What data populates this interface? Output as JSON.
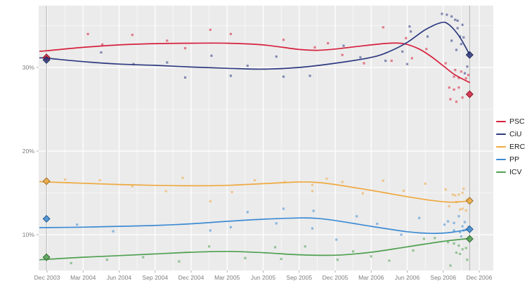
{
  "chart_data": {
    "type": "line",
    "title": "",
    "xlabel": "",
    "ylabel": "",
    "x_axis": {
      "tick_labels": [
        "Dec 2003",
        "Mar 2004",
        "Jun 2004",
        "Sep 2004",
        "Dec 2004",
        "Mar 2005",
        "Jun 2005",
        "Sep 2005",
        "Dec 2005",
        "Mar 2006",
        "Jun 2006",
        "Sep 2006",
        "Dec 2006"
      ],
      "tick_months": [
        0,
        3,
        6,
        9,
        12,
        15,
        18,
        21,
        24,
        27,
        30,
        33,
        36
      ],
      "minor_tick_months": [
        1.5,
        4.5,
        7.5,
        10.5,
        13.5,
        16.5,
        19.5,
        22.5,
        25.5,
        28.5,
        31.5,
        34.5
      ],
      "range_months": [
        -0.7,
        37.2
      ]
    },
    "y_axis": {
      "tick_labels": [
        "10%",
        "20%",
        "30%"
      ],
      "tick_values": [
        10,
        20,
        30
      ],
      "minor_tick_values": [
        15,
        25,
        35
      ],
      "range": [
        5.7,
        37.4
      ]
    },
    "election_lines_months": [
      -0.05,
      35.2
    ],
    "legend_position": "right",
    "colors": {
      "panel_bg": "#EBEBEB",
      "grid": "#FFFFFF",
      "election_line": "#ACACAC",
      "axis_text": "#7E7E7E",
      "tick_mark": "#9A9A9A"
    },
    "series": [
      {
        "name": "PSC",
        "color": "#D6203C",
        "smooth": [
          [
            -0.6,
            31.95
          ],
          [
            0,
            32.0
          ],
          [
            3,
            32.4
          ],
          [
            6,
            32.7
          ],
          [
            9,
            32.85
          ],
          [
            12,
            32.9
          ],
          [
            15,
            32.9
          ],
          [
            18,
            32.7
          ],
          [
            21,
            32.15
          ],
          [
            22.5,
            32.05
          ],
          [
            24,
            32.2
          ],
          [
            25.5,
            32.45
          ],
          [
            27,
            32.7
          ],
          [
            28.5,
            32.9
          ],
          [
            29.7,
            32.85
          ],
          [
            31,
            32.2
          ],
          [
            32,
            31.3
          ],
          [
            33,
            30.2
          ],
          [
            34,
            29.1
          ],
          [
            35.2,
            28.2
          ]
        ],
        "polls": [
          [
            3.4,
            34.0
          ],
          [
            4.6,
            32.75
          ],
          [
            7.1,
            33.9
          ],
          [
            10.0,
            33.2
          ],
          [
            11.5,
            32.3
          ],
          [
            13.6,
            34.5
          ],
          [
            15.3,
            34.0
          ],
          [
            19.7,
            33.3
          ],
          [
            22.3,
            32.4
          ],
          [
            23.4,
            32.9
          ],
          [
            24.6,
            31.5
          ],
          [
            26.4,
            30.5
          ],
          [
            28.0,
            34.8
          ],
          [
            28.7,
            30.8
          ],
          [
            29.9,
            33.5
          ],
          [
            30.4,
            31.1
          ],
          [
            31.6,
            32.2
          ],
          [
            33.2,
            30.5
          ],
          [
            34.0,
            29.7
          ],
          [
            34.5,
            29.5
          ],
          [
            33.9,
            28.9
          ],
          [
            34.3,
            28.75
          ],
          [
            33.5,
            27.6
          ],
          [
            33.9,
            27.35
          ],
          [
            34.3,
            27.6
          ],
          [
            34.9,
            28.7
          ],
          [
            34.6,
            26.4
          ],
          [
            33.6,
            26.2
          ],
          [
            34.1,
            25.9
          ],
          [
            35.1,
            29.1
          ]
        ],
        "elections": [
          [
            -0.05,
            31.2
          ],
          [
            35.2,
            26.8
          ]
        ]
      },
      {
        "name": "CiU",
        "color": "#2E3A80",
        "smooth": [
          [
            -0.6,
            31.15
          ],
          [
            0,
            31.1
          ],
          [
            3,
            30.7
          ],
          [
            6,
            30.4
          ],
          [
            9,
            30.25
          ],
          [
            12,
            30.05
          ],
          [
            15,
            29.9
          ],
          [
            18,
            29.8
          ],
          [
            21,
            30.0
          ],
          [
            24,
            30.5
          ],
          [
            27,
            31.2
          ],
          [
            28.5,
            31.9
          ],
          [
            30,
            33.0
          ],
          [
            31.5,
            34.5
          ],
          [
            32.8,
            35.35
          ],
          [
            33.4,
            35.2
          ],
          [
            34.2,
            34.0
          ],
          [
            34.8,
            32.6
          ],
          [
            35.2,
            31.5
          ]
        ],
        "polls": [
          [
            4.5,
            31.8
          ],
          [
            7.2,
            30.4
          ],
          [
            10.0,
            30.6
          ],
          [
            11.5,
            28.8
          ],
          [
            13.7,
            31.4
          ],
          [
            15.3,
            29.0
          ],
          [
            16.7,
            30.2
          ],
          [
            19.1,
            31.3
          ],
          [
            19.7,
            28.9
          ],
          [
            21.9,
            29.0
          ],
          [
            24.7,
            32.6
          ],
          [
            26.1,
            31.2
          ],
          [
            28.2,
            30.8
          ],
          [
            29.6,
            31.9
          ],
          [
            30.0,
            30.4
          ],
          [
            30.2,
            34.9
          ],
          [
            30.3,
            34.3
          ],
          [
            31.7,
            33.7
          ],
          [
            32.9,
            36.4
          ],
          [
            33.3,
            36.3
          ],
          [
            33.7,
            36.1
          ],
          [
            34.0,
            35.7
          ],
          [
            34.2,
            35.6
          ],
          [
            34.6,
            35.1
          ],
          [
            34.2,
            34.7
          ],
          [
            34.4,
            33.7
          ],
          [
            34.7,
            33.6
          ],
          [
            33.7,
            33.2
          ],
          [
            34.5,
            32.8
          ],
          [
            34.1,
            32.1
          ],
          [
            35.0,
            30.1
          ],
          [
            34.8,
            29.3
          ]
        ],
        "elections": [
          [
            -0.05,
            30.9
          ],
          [
            35.2,
            31.5
          ]
        ]
      },
      {
        "name": "ERC",
        "color": "#EFA940",
        "smooth": [
          [
            -0.6,
            16.35
          ],
          [
            0,
            16.3
          ],
          [
            3,
            16.15
          ],
          [
            6,
            16.0
          ],
          [
            9,
            15.9
          ],
          [
            12,
            15.85
          ],
          [
            15,
            15.9
          ],
          [
            18,
            16.1
          ],
          [
            21,
            16.3
          ],
          [
            22.5,
            16.25
          ],
          [
            24,
            16.0
          ],
          [
            27,
            15.3
          ],
          [
            30,
            14.55
          ],
          [
            32,
            14.1
          ],
          [
            33.5,
            13.9
          ],
          [
            34.5,
            13.95
          ],
          [
            35.2,
            14.05
          ]
        ],
        "polls": [
          [
            1.5,
            16.6
          ],
          [
            4.4,
            16.5
          ],
          [
            7.1,
            15.8
          ],
          [
            9.9,
            15.2
          ],
          [
            11.3,
            16.8
          ],
          [
            13.6,
            14.0
          ],
          [
            15.4,
            15.1
          ],
          [
            17.3,
            16.5
          ],
          [
            19.8,
            16.3
          ],
          [
            22.1,
            15.95
          ],
          [
            22.1,
            15.2
          ],
          [
            23.3,
            16.7
          ],
          [
            24.6,
            16.3
          ],
          [
            26.3,
            14.95
          ],
          [
            28.0,
            16.45
          ],
          [
            29.7,
            15.25
          ],
          [
            31.5,
            16.1
          ],
          [
            33.2,
            15.4
          ],
          [
            33.5,
            13.4
          ],
          [
            33.8,
            14.8
          ],
          [
            34.1,
            13.9
          ],
          [
            34.0,
            14.7
          ],
          [
            34.3,
            14.8
          ],
          [
            34.4,
            13.0
          ],
          [
            34.6,
            15.0
          ],
          [
            34.6,
            13.1
          ],
          [
            34.7,
            15.5
          ],
          [
            35.0,
            14.2
          ],
          [
            34.9,
            12.9
          ]
        ],
        "elections": [
          [
            -0.05,
            16.4
          ],
          [
            35.2,
            14.05
          ]
        ]
      },
      {
        "name": "PP",
        "color": "#3D8BD4",
        "smooth": [
          [
            -0.6,
            10.85
          ],
          [
            0,
            10.85
          ],
          [
            3,
            10.9
          ],
          [
            6,
            11.0
          ],
          [
            9,
            11.1
          ],
          [
            12,
            11.3
          ],
          [
            15,
            11.6
          ],
          [
            18,
            11.85
          ],
          [
            21,
            12.0
          ],
          [
            22.5,
            11.95
          ],
          [
            24,
            11.7
          ],
          [
            27,
            11.0
          ],
          [
            30,
            10.35
          ],
          [
            32,
            10.15
          ],
          [
            33.5,
            10.25
          ],
          [
            35.2,
            10.65
          ]
        ],
        "polls": [
          [
            2.5,
            11.2
          ],
          [
            5.5,
            10.4
          ],
          [
            13.6,
            10.5
          ],
          [
            15.3,
            10.9
          ],
          [
            16.7,
            12.7
          ],
          [
            19.1,
            11.35
          ],
          [
            19.7,
            13.1
          ],
          [
            22.2,
            12.85
          ],
          [
            22.1,
            10.75
          ],
          [
            24.1,
            9.4
          ],
          [
            25.8,
            12.2
          ],
          [
            27.5,
            11.3
          ],
          [
            29.5,
            10.0
          ],
          [
            31.0,
            12.0
          ],
          [
            33.1,
            11.2
          ],
          [
            33.4,
            11.6
          ],
          [
            33.9,
            11.4
          ],
          [
            34.3,
            12.2
          ],
          [
            33.9,
            10.5
          ],
          [
            34.4,
            10.3
          ],
          [
            34.7,
            10.5
          ],
          [
            34.9,
            10.6
          ],
          [
            34.5,
            9.8
          ],
          [
            34.6,
            11.0
          ],
          [
            35.1,
            10.9
          ],
          [
            34.8,
            11.5
          ]
        ],
        "elections": [
          [
            -0.05,
            11.9
          ],
          [
            35.2,
            10.65
          ]
        ]
      },
      {
        "name": "ICV",
        "color": "#4FA050",
        "smooth": [
          [
            -0.6,
            7.0
          ],
          [
            0,
            7.05
          ],
          [
            3,
            7.3
          ],
          [
            6,
            7.5
          ],
          [
            9,
            7.7
          ],
          [
            12,
            7.9
          ],
          [
            15,
            8.0
          ],
          [
            18,
            7.85
          ],
          [
            21,
            7.6
          ],
          [
            24,
            7.55
          ],
          [
            27,
            7.9
          ],
          [
            30,
            8.55
          ],
          [
            33,
            9.2
          ],
          [
            35.2,
            9.55
          ]
        ],
        "polls": [
          [
            2.0,
            6.6
          ],
          [
            5.0,
            7.0
          ],
          [
            8.0,
            7.3
          ],
          [
            11.0,
            6.8
          ],
          [
            13.5,
            8.6
          ],
          [
            16.5,
            7.2
          ],
          [
            19.0,
            8.5
          ],
          [
            19.5,
            7.1
          ],
          [
            21.5,
            8.6
          ],
          [
            24.2,
            7.0
          ],
          [
            25.5,
            8.0
          ],
          [
            27.0,
            7.4
          ],
          [
            28.5,
            6.9
          ],
          [
            30.5,
            8.1
          ],
          [
            31.4,
            9.5
          ],
          [
            32.3,
            9.6
          ],
          [
            33.4,
            9.1
          ],
          [
            33.9,
            8.95
          ],
          [
            34.3,
            8.7
          ],
          [
            34.6,
            8.25
          ],
          [
            34.9,
            8.4
          ],
          [
            34.4,
            7.7
          ],
          [
            34.1,
            7.85
          ],
          [
            35.0,
            7.0
          ],
          [
            33.6,
            6.3
          ]
        ],
        "elections": [
          [
            -0.05,
            7.3
          ],
          [
            35.2,
            9.5
          ]
        ]
      }
    ]
  }
}
